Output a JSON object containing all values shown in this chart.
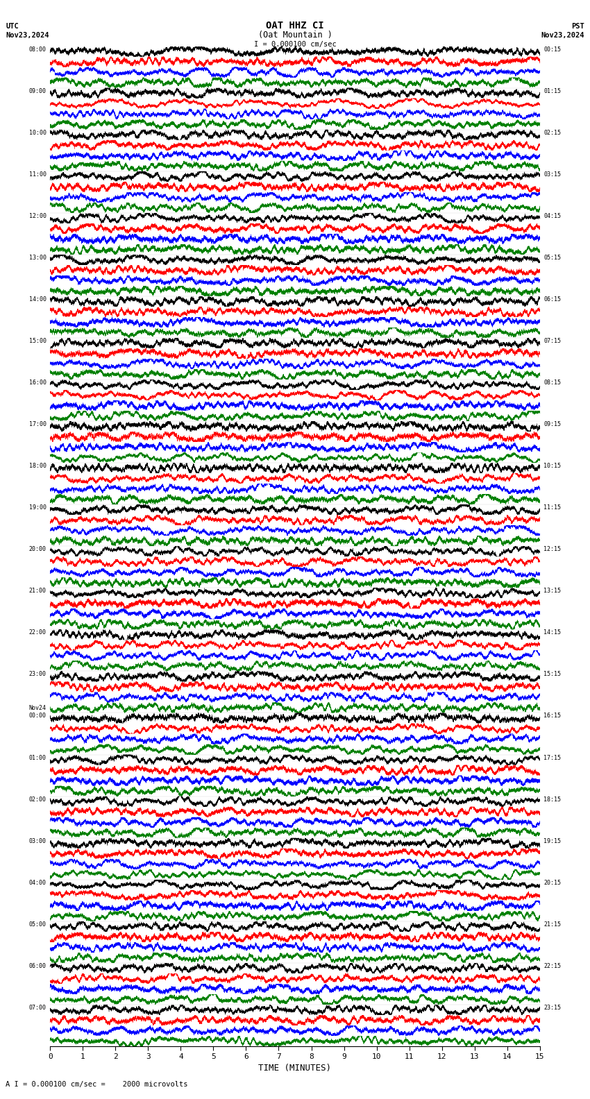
{
  "title_line1": "OAT HHZ CI",
  "title_line2": "(Oat Mountain )",
  "scale_label": "I = 0.000100 cm/sec",
  "bottom_scale_label": "A I = 0.000100 cm/sec =    2000 microvolts",
  "utc_label": "UTC",
  "utc_date": "Nov23,2024",
  "pst_label": "PST",
  "pst_date": "Nov23,2024",
  "xlabel": "TIME (MINUTES)",
  "xlim": [
    0,
    15
  ],
  "xticks": [
    0,
    1,
    2,
    3,
    4,
    5,
    6,
    7,
    8,
    9,
    10,
    11,
    12,
    13,
    14,
    15
  ],
  "left_times": [
    "08:00",
    "09:00",
    "10:00",
    "11:00",
    "12:00",
    "13:00",
    "14:00",
    "15:00",
    "16:00",
    "17:00",
    "18:00",
    "19:00",
    "20:00",
    "21:00",
    "22:00",
    "23:00",
    "Nov24\n00:00",
    "01:00",
    "02:00",
    "03:00",
    "04:00",
    "05:00",
    "06:00",
    "07:00"
  ],
  "right_times": [
    "00:15",
    "01:15",
    "02:15",
    "03:15",
    "04:15",
    "05:15",
    "06:15",
    "07:15",
    "08:15",
    "09:15",
    "10:15",
    "11:15",
    "12:15",
    "13:15",
    "14:15",
    "15:15",
    "16:15",
    "17:15",
    "18:15",
    "19:15",
    "20:15",
    "21:15",
    "22:15",
    "23:15"
  ],
  "n_rows": 24,
  "n_traces_per_row": 4,
  "colors": [
    "black",
    "red",
    "blue",
    "green"
  ],
  "background_color": "white",
  "fig_width": 8.5,
  "fig_height": 15.84
}
